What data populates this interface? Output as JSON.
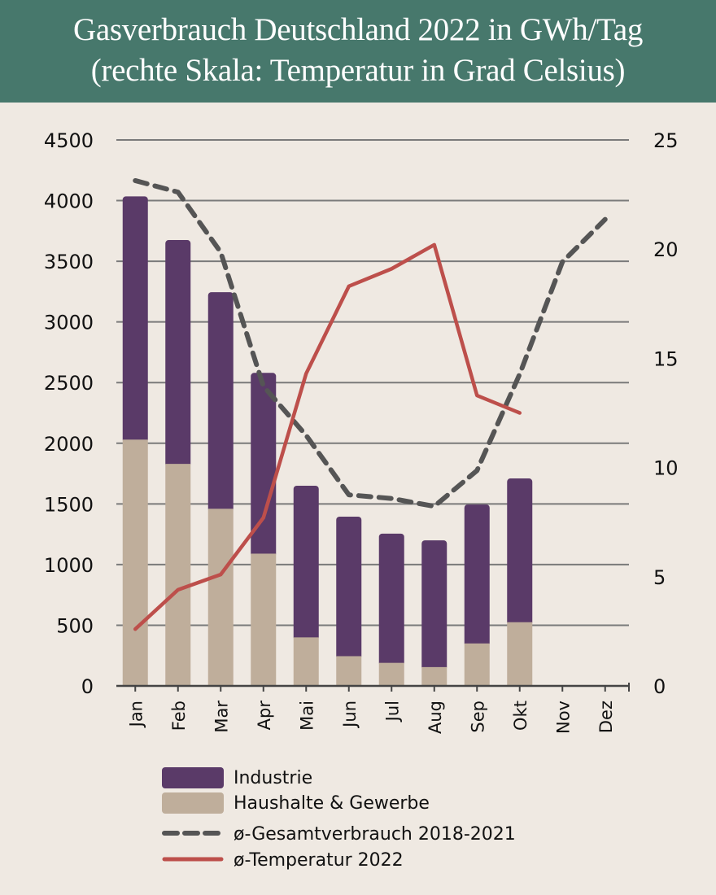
{
  "header": {
    "title_line1": "Gasverbrauch Deutschland 2022 in GWh/Tag",
    "title_line2": "(rechte Skala: Temperatur in Grad Celsius)"
  },
  "colors": {
    "header_bg": "#47786c",
    "industrie": "#5a3a68",
    "haushalte": "#bfae9b",
    "gesamt": "#555555",
    "temperatur": "#bd4f4b",
    "grid": "#7a7a7a"
  },
  "chart_data": {
    "type": "bar",
    "stacked": true,
    "title": "Gasverbrauch Deutschland 2022 in GWh/Tag (rechte Skala: Temperatur in Grad Celsius)",
    "categories": [
      "Jan",
      "Feb",
      "Mar",
      "Apr",
      "Mai",
      "Jun",
      "Jul",
      "Aug",
      "Sep",
      "Okt",
      "Nov",
      "Dez"
    ],
    "ylim": [
      0,
      4500
    ],
    "y_ticks": [
      "0",
      "500",
      "1000",
      "1500",
      "2000",
      "2500",
      "3000",
      "3500",
      "4000",
      "4500"
    ],
    "y2lim": [
      0,
      25
    ],
    "y2_ticks": [
      "0",
      "5",
      "10",
      "15",
      "20",
      "25"
    ],
    "grid": true,
    "legend_position": "bottom",
    "series": [
      {
        "name": "Industrie",
        "kind": "bar",
        "axis": "left",
        "values": [
          2005,
          1845,
          1785,
          1490,
          1250,
          1150,
          1065,
          1045,
          1145,
          1185,
          null,
          null
        ]
      },
      {
        "name": "Haushalte & Gewerbe",
        "kind": "bar",
        "axis": "left",
        "values": [
          2030,
          1830,
          1460,
          1090,
          400,
          245,
          190,
          155,
          350,
          525,
          null,
          null
        ]
      },
      {
        "name": "ø-Gesamtverbrauch 2018-2021",
        "kind": "line-dashed",
        "axis": "left",
        "values": [
          4165,
          4070,
          3575,
          2470,
          2065,
          1575,
          1545,
          1480,
          1775,
          2570,
          3495,
          3845
        ]
      },
      {
        "name": "ø-Temperatur 2022",
        "kind": "line",
        "axis": "right",
        "values": [
          2.6,
          4.4,
          5.1,
          7.7,
          14.3,
          18.3,
          19.1,
          20.2,
          13.3,
          12.5,
          null,
          null
        ]
      }
    ]
  },
  "legend": [
    {
      "label": "Industrie"
    },
    {
      "label": "Haushalte & Gewerbe"
    },
    {
      "label": "ø-Gesamtverbrauch 2018-2021"
    },
    {
      "label": "ø-Temperatur 2022"
    }
  ]
}
